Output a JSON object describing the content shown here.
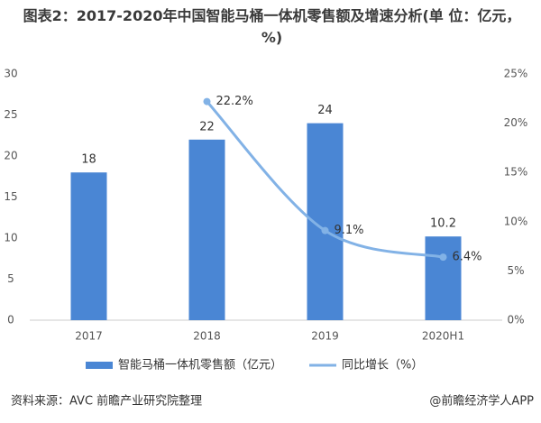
{
  "chart_data": {
    "type": "bar_line",
    "title": "图表2：2017-2020年中国智能马桶一体机零售额及增速分析(单 位：亿元，%)",
    "categories": [
      "2017",
      "2018",
      "2019",
      "2020H1"
    ],
    "series": [
      {
        "name": "智能马桶一体机零售额（亿元）",
        "color": "#4a86d4",
        "kind": "bar",
        "values": [
          18,
          22,
          24,
          10.2
        ]
      },
      {
        "name": "同比增长（%）",
        "color": "#82b2e6",
        "kind": "line",
        "axis": "y2",
        "values": [
          null,
          22.2,
          9.1,
          6.4
        ],
        "value_labels": [
          null,
          "22.2%",
          "9.1%",
          "6.4%"
        ]
      }
    ],
    "ylim": [
      0,
      30
    ],
    "yticks": [
      0,
      5,
      10,
      15,
      20,
      25,
      30
    ],
    "y2lim": [
      0,
      25
    ],
    "y2ticks": [
      {
        "value": 0,
        "label": "0%"
      },
      {
        "value": 5,
        "label": "5%"
      },
      {
        "value": 10,
        "label": "10%"
      },
      {
        "value": 15,
        "label": "15%"
      },
      {
        "value": 20,
        "label": "20%"
      },
      {
        "value": 25,
        "label": "25%"
      }
    ],
    "source": "资料来源：AVC 前瞻产业研究院整理",
    "watermark": "@前瞻经济学人APP"
  }
}
